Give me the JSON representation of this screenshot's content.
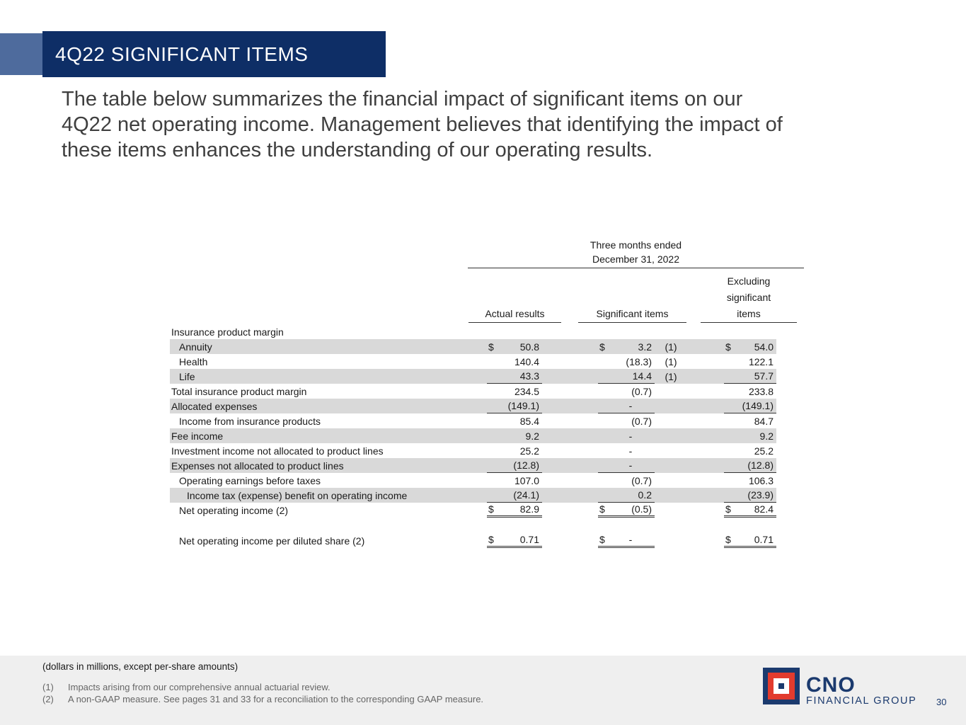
{
  "slide": {
    "title": "4Q22 SIGNIFICANT ITEMS",
    "intro_lines": [
      "The table below summarizes the financial impact of significant items on our",
      "4Q22 net operating income. Management believes that identifying the impact of",
      "these items enhances the understanding of our operating results."
    ]
  },
  "table": {
    "period": {
      "line1": "Three months ended",
      "line2": "December 31, 2022"
    },
    "columns": [
      {
        "label": "Actual results"
      },
      {
        "label": "Significant items"
      },
      {
        "label": "Excluding significant items",
        "lines": [
          "Excluding",
          "significant",
          "items"
        ]
      }
    ],
    "rows": [
      {
        "label": "Insurance product margin",
        "indent": 0,
        "shaded": false,
        "actual": "",
        "sig": "",
        "note": "",
        "excl": "",
        "rule": "none"
      },
      {
        "label": "Annuity",
        "indent": 1,
        "shaded": true,
        "actual_sign": "$",
        "actual": "50.8",
        "sig_sign": "$",
        "sig": "3.2",
        "note": "(1)",
        "excl_sign": "$",
        "excl": "54.0",
        "rule": "none"
      },
      {
        "label": "Health",
        "indent": 1,
        "shaded": false,
        "actual": "140.4",
        "sig": "(18.3)",
        "note": "(1)",
        "excl": "122.1",
        "rule": "none"
      },
      {
        "label": "Life",
        "indent": 1,
        "shaded": true,
        "actual": "43.3",
        "sig": "14.4",
        "note": "(1)",
        "excl": "57.7",
        "rule": "single"
      },
      {
        "label": "Total insurance product margin",
        "indent": 0,
        "shaded": false,
        "actual": "234.5",
        "sig": "(0.7)",
        "note": "",
        "excl": "233.8",
        "rule": "none"
      },
      {
        "label": "Allocated expenses",
        "indent": 0,
        "shaded": true,
        "actual": "(149.1)",
        "sig": "-",
        "note": "",
        "excl": "(149.1)",
        "rule": "single"
      },
      {
        "label": "Income from insurance products",
        "indent": 1,
        "shaded": false,
        "actual": "85.4",
        "sig": "(0.7)",
        "note": "",
        "excl": "84.7",
        "rule": "none"
      },
      {
        "label": "Fee income",
        "indent": 0,
        "shaded": true,
        "actual": "9.2",
        "sig": "-",
        "note": "",
        "excl": "9.2",
        "rule": "none"
      },
      {
        "label": "Investment income not allocated to product lines",
        "indent": 0,
        "shaded": false,
        "actual": "25.2",
        "sig": "-",
        "note": "",
        "excl": "25.2",
        "rule": "none"
      },
      {
        "label": "Expenses not allocated to product lines",
        "indent": 0,
        "shaded": true,
        "actual": "(12.8)",
        "sig": "-",
        "note": "",
        "excl": "(12.8)",
        "rule": "single"
      },
      {
        "label": "Operating earnings before taxes",
        "indent": 1,
        "shaded": false,
        "actual": "107.0",
        "sig": "(0.7)",
        "note": "",
        "excl": "106.3",
        "rule": "none"
      },
      {
        "label": "Income tax (expense) benefit on operating income",
        "indent": 2,
        "shaded": true,
        "actual": "(24.1)",
        "sig": "0.2",
        "note": "",
        "excl": "(23.9)",
        "rule": "single"
      },
      {
        "label": "Net operating income (2)",
        "indent": 1,
        "shaded": false,
        "actual_sign": "$",
        "actual": "82.9",
        "sig_sign": "$",
        "sig": "(0.5)",
        "note": "",
        "excl_sign": "$",
        "excl": "82.4",
        "rule": "double"
      },
      {
        "spacer": true
      },
      {
        "label": "Net operating income per diluted share (2)",
        "indent": 1,
        "shaded": false,
        "actual_sign": "$",
        "actual": "0.71",
        "sig_sign": "$",
        "sig": "-",
        "note": "",
        "excl_sign": "$",
        "excl": "0.71",
        "rule": "double"
      }
    ]
  },
  "footer": {
    "units_note": "(dollars in millions, except per-share amounts)",
    "footnotes": [
      {
        "marker": "(1)",
        "text": "Impacts arising from our comprehensive annual actuarial review."
      },
      {
        "marker": "(2)",
        "text": "A non-GAAP measure. See pages 31 and 33 for a reconciliation to the corresponding GAAP measure."
      }
    ]
  },
  "logo": {
    "brand": "CNO",
    "tagline": "FINANCIAL GROUP"
  },
  "page_number": "30",
  "colors": {
    "brand_navy": "#0e2e66",
    "accent_blue": "#4e6b9d",
    "logo_red": "#e23b2e",
    "row_shade": "#d9d9d9",
    "footer_bg": "#efefef"
  }
}
